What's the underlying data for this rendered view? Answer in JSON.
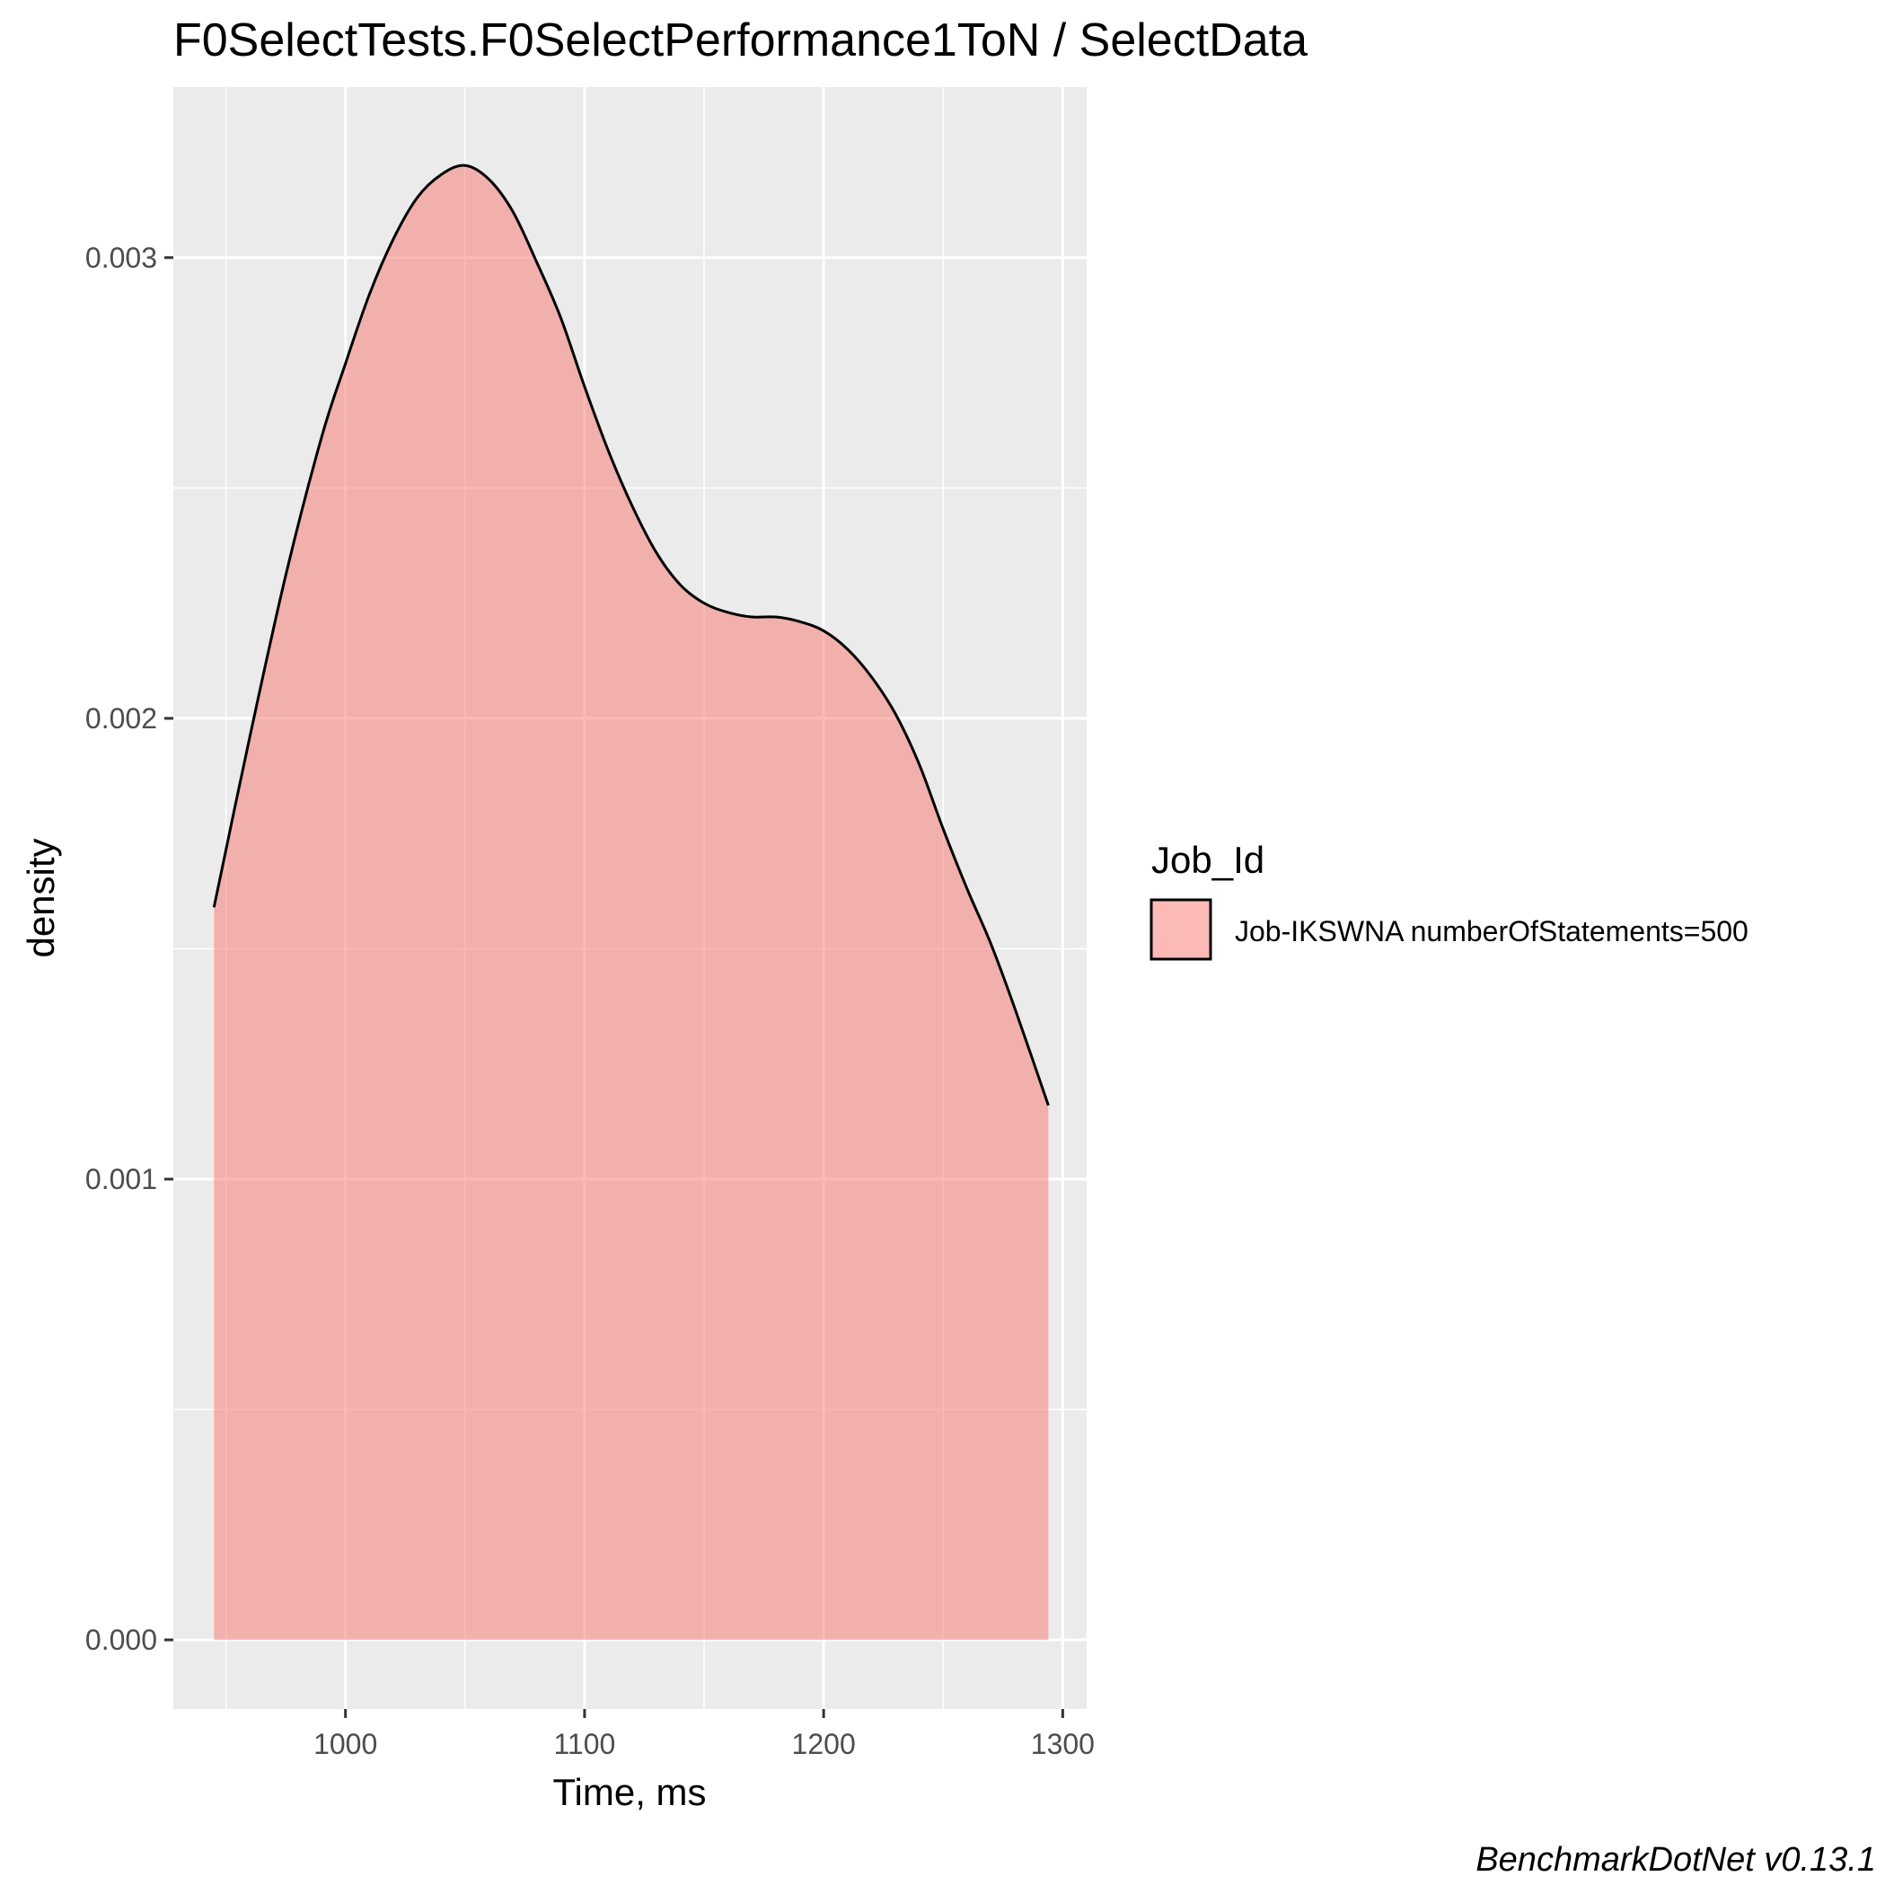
{
  "chart_data": {
    "type": "area",
    "title": "F0SelectTests.F0SelectPerformance1ToN / SelectData",
    "xlabel": "Time, ms",
    "ylabel": "density",
    "xlim": [
      928,
      1310
    ],
    "ylim": [
      -0.00015,
      0.00337
    ],
    "x_ticks": [
      1000,
      1100,
      1200,
      1300
    ],
    "x_tick_labels": [
      "1000",
      "1100",
      "1200",
      "1300"
    ],
    "y_ticks": [
      0.0,
      0.001,
      0.002,
      0.003
    ],
    "y_tick_labels": [
      "0.000",
      "0.001",
      "0.002",
      "0.003"
    ],
    "grid": true,
    "legend": {
      "title": "Job_Id",
      "position": "right",
      "entries": [
        "Job-IKSWNA numberOfStatements=500"
      ]
    },
    "series": [
      {
        "name": "Job-IKSWNA numberOfStatements=500",
        "color": "#f8766d",
        "x": [
          945,
          960,
          975,
          990,
          1000,
          1010,
          1020,
          1030,
          1040,
          1050,
          1060,
          1070,
          1080,
          1090,
          1100,
          1110,
          1120,
          1130,
          1140,
          1150,
          1160,
          1170,
          1180,
          1190,
          1200,
          1210,
          1220,
          1230,
          1240,
          1250,
          1260,
          1270,
          1280,
          1294
        ],
        "y": [
          0.00159,
          0.00196,
          0.00231,
          0.00261,
          0.00277,
          0.00292,
          0.00304,
          0.00313,
          0.00318,
          0.0032,
          0.00317,
          0.0031,
          0.00299,
          0.00287,
          0.00272,
          0.00258,
          0.00246,
          0.00236,
          0.00229,
          0.00225,
          0.00223,
          0.00222,
          0.00222,
          0.00221,
          0.00219,
          0.00215,
          0.00209,
          0.00201,
          0.0019,
          0.00176,
          0.00163,
          0.00151,
          0.00137,
          0.00116
        ]
      }
    ]
  },
  "caption": "BenchmarkDotNet v0.13.1"
}
